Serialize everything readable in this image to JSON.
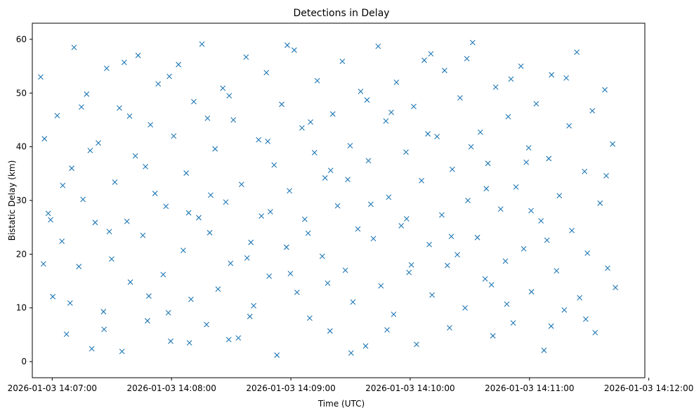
{
  "chart_data": {
    "type": "scatter",
    "title": "Detections in Delay",
    "xlabel": "Time (UTC)",
    "ylabel": "Bistatic Delay (km)",
    "marker": "x",
    "color": "#1f77b4",
    "x_unit": "seconds since 2026-01-03 14:06:50 UTC",
    "xlim": [
      0,
      308
    ],
    "ylim": [
      -3,
      63
    ],
    "xticks": [
      {
        "value": 10,
        "label": "2026-01-03 14:07:00"
      },
      {
        "value": 70,
        "label": "2026-01-03 14:08:00"
      },
      {
        "value": 130,
        "label": "2026-01-03 14:09:00"
      },
      {
        "value": 190,
        "label": "2026-01-03 14:10:00"
      },
      {
        "value": 250,
        "label": "2026-01-03 14:11:00"
      },
      {
        "value": 310,
        "label": "2026-01-03 14:12:00"
      }
    ],
    "yticks": [
      {
        "value": 0,
        "label": "0"
      },
      {
        "value": 10,
        "label": "10"
      },
      {
        "value": 20,
        "label": "20"
      },
      {
        "value": 30,
        "label": "30"
      },
      {
        "value": 40,
        "label": "40"
      },
      {
        "value": 50,
        "label": "50"
      },
      {
        "value": 60,
        "label": "60"
      }
    ],
    "series": [
      {
        "name": "detections",
        "points": [
          [
            4.2,
            53.0
          ],
          [
            6.1,
            41.5
          ],
          [
            8.0,
            27.6
          ],
          [
            10.3,
            12.1
          ],
          [
            12.5,
            45.8
          ],
          [
            14.9,
            22.4
          ],
          [
            17.2,
            5.1
          ],
          [
            19.8,
            36.0
          ],
          [
            21.0,
            58.5
          ],
          [
            23.4,
            17.7
          ],
          [
            25.5,
            30.2
          ],
          [
            27.3,
            49.8
          ],
          [
            29.9,
            2.4
          ],
          [
            31.6,
            25.9
          ],
          [
            33.2,
            40.7
          ],
          [
            35.8,
            9.3
          ],
          [
            37.4,
            54.6
          ],
          [
            39.9,
            19.1
          ],
          [
            41.5,
            33.4
          ],
          [
            43.8,
            47.2
          ],
          [
            45.1,
            1.9
          ],
          [
            47.6,
            26.1
          ],
          [
            49.3,
            14.8
          ],
          [
            51.8,
            38.3
          ],
          [
            53.2,
            57.0
          ],
          [
            55.6,
            23.5
          ],
          [
            57.9,
            7.6
          ],
          [
            59.4,
            44.1
          ],
          [
            61.7,
            31.3
          ],
          [
            63.3,
            51.7
          ],
          [
            65.8,
            16.2
          ],
          [
            67.2,
            28.9
          ],
          [
            69.6,
            3.8
          ],
          [
            71.1,
            42.0
          ],
          [
            73.5,
            55.3
          ],
          [
            75.9,
            20.7
          ],
          [
            77.4,
            35.1
          ],
          [
            79.8,
            11.6
          ],
          [
            81.2,
            48.4
          ],
          [
            83.7,
            26.8
          ],
          [
            85.3,
            59.1
          ],
          [
            87.6,
            6.9
          ],
          [
            89.2,
            24.0
          ],
          [
            91.9,
            39.6
          ],
          [
            93.4,
            13.5
          ],
          [
            95.8,
            50.9
          ],
          [
            97.3,
            29.7
          ],
          [
            99.7,
            18.3
          ],
          [
            101.1,
            45.0
          ],
          [
            103.6,
            4.4
          ],
          [
            105.2,
            33.0
          ],
          [
            107.5,
            56.7
          ],
          [
            109.9,
            22.2
          ],
          [
            111.3,
            10.4
          ],
          [
            113.8,
            41.3
          ],
          [
            115.2,
            27.1
          ],
          [
            117.7,
            53.8
          ],
          [
            119.1,
            15.9
          ],
          [
            121.6,
            36.6
          ],
          [
            123.0,
            1.2
          ],
          [
            125.4,
            47.9
          ],
          [
            127.8,
            21.3
          ],
          [
            129.3,
            31.8
          ],
          [
            131.7,
            58.0
          ],
          [
            133.1,
            12.9
          ],
          [
            135.6,
            43.5
          ],
          [
            137.0,
            26.5
          ],
          [
            139.5,
            8.1
          ],
          [
            141.9,
            38.9
          ],
          [
            143.3,
            52.3
          ],
          [
            145.8,
            19.6
          ],
          [
            147.2,
            34.2
          ],
          [
            149.7,
            5.7
          ],
          [
            151.1,
            46.1
          ],
          [
            153.5,
            29.0
          ],
          [
            155.9,
            55.9
          ],
          [
            157.4,
            17.0
          ],
          [
            159.8,
            40.2
          ],
          [
            161.2,
            11.1
          ],
          [
            163.7,
            24.7
          ],
          [
            165.1,
            50.3
          ],
          [
            167.6,
            2.9
          ],
          [
            169.0,
            37.4
          ],
          [
            171.5,
            22.9
          ],
          [
            173.9,
            58.7
          ],
          [
            175.3,
            14.1
          ],
          [
            177.8,
            44.8
          ],
          [
            179.2,
            30.6
          ],
          [
            181.7,
            8.8
          ],
          [
            183.1,
            52.0
          ],
          [
            185.5,
            25.3
          ],
          [
            187.9,
            39.0
          ],
          [
            189.4,
            16.6
          ],
          [
            191.8,
            47.5
          ],
          [
            193.2,
            3.2
          ],
          [
            195.7,
            33.7
          ],
          [
            197.1,
            56.1
          ],
          [
            199.6,
            21.8
          ],
          [
            201.0,
            12.4
          ],
          [
            203.5,
            41.9
          ],
          [
            205.9,
            27.3
          ],
          [
            207.3,
            54.2
          ],
          [
            209.8,
            6.3
          ],
          [
            211.2,
            35.8
          ],
          [
            213.7,
            19.9
          ],
          [
            215.1,
            49.1
          ],
          [
            217.6,
            10.0
          ],
          [
            219.0,
            30.0
          ],
          [
            221.4,
            59.4
          ],
          [
            223.8,
            23.1
          ],
          [
            225.3,
            42.7
          ],
          [
            227.7,
            15.4
          ],
          [
            229.1,
            36.9
          ],
          [
            231.6,
            4.8
          ],
          [
            233.0,
            51.1
          ],
          [
            235.5,
            28.4
          ],
          [
            237.9,
            18.7
          ],
          [
            239.3,
            45.6
          ],
          [
            241.8,
            7.2
          ],
          [
            243.2,
            32.5
          ],
          [
            245.7,
            55.0
          ],
          [
            247.1,
            21.0
          ],
          [
            249.6,
            39.8
          ],
          [
            251.0,
            13.0
          ],
          [
            253.4,
            48.0
          ],
          [
            255.8,
            26.2
          ],
          [
            257.3,
            2.1
          ],
          [
            259.7,
            37.8
          ],
          [
            261.1,
            53.4
          ],
          [
            263.6,
            16.9
          ],
          [
            265.0,
            30.9
          ],
          [
            267.5,
            9.6
          ],
          [
            269.9,
            43.9
          ],
          [
            271.3,
            24.4
          ],
          [
            273.8,
            57.6
          ],
          [
            275.2,
            11.9
          ],
          [
            277.7,
            35.4
          ],
          [
            279.1,
            20.2
          ],
          [
            281.6,
            46.7
          ],
          [
            283.0,
            5.4
          ],
          [
            285.5,
            29.5
          ],
          [
            287.9,
            50.6
          ],
          [
            289.3,
            17.4
          ],
          [
            291.8,
            40.5
          ],
          [
            293.2,
            13.8
          ],
          [
            5.6,
            18.2
          ],
          [
            15.3,
            32.8
          ],
          [
            24.7,
            47.4
          ],
          [
            36.1,
            6.0
          ],
          [
            46.2,
            55.7
          ],
          [
            56.9,
            36.3
          ],
          [
            68.4,
            9.1
          ],
          [
            78.6,
            27.7
          ],
          [
            88.1,
            45.3
          ],
          [
            98.8,
            4.1
          ],
          [
            108.0,
            19.3
          ],
          [
            118.4,
            41.0
          ],
          [
            128.2,
            58.9
          ],
          [
            138.7,
            23.9
          ],
          [
            148.5,
            14.6
          ],
          [
            158.6,
            33.9
          ],
          [
            168.3,
            48.7
          ],
          [
            178.4,
            5.9
          ],
          [
            188.2,
            26.6
          ],
          [
            198.9,
            42.4
          ],
          [
            208.7,
            17.9
          ],
          [
            218.5,
            56.4
          ],
          [
            228.3,
            32.2
          ],
          [
            238.6,
            10.7
          ],
          [
            248.4,
            37.1
          ],
          [
            258.8,
            22.6
          ],
          [
            268.5,
            52.8
          ],
          [
            278.3,
            7.9
          ],
          [
            288.6,
            34.6
          ],
          [
            9.2,
            26.4
          ],
          [
            19.0,
            10.9
          ],
          [
            29.1,
            39.3
          ],
          [
            38.7,
            24.2
          ],
          [
            48.9,
            45.7
          ],
          [
            58.6,
            12.2
          ],
          [
            68.9,
            53.1
          ],
          [
            79.0,
            3.5
          ],
          [
            89.7,
            31.0
          ],
          [
            99.0,
            49.5
          ],
          [
            109.4,
            8.4
          ],
          [
            119.7,
            27.9
          ],
          [
            129.8,
            16.4
          ],
          [
            139.9,
            44.6
          ],
          [
            150.0,
            35.6
          ],
          [
            160.3,
            1.6
          ],
          [
            170.2,
            29.3
          ],
          [
            180.5,
            46.4
          ],
          [
            190.6,
            18.0
          ],
          [
            200.4,
            57.3
          ],
          [
            210.7,
            23.3
          ],
          [
            220.6,
            40.0
          ],
          [
            230.9,
            14.3
          ],
          [
            240.7,
            52.6
          ],
          [
            250.8,
            28.1
          ],
          [
            260.9,
            6.6
          ]
        ]
      }
    ]
  }
}
